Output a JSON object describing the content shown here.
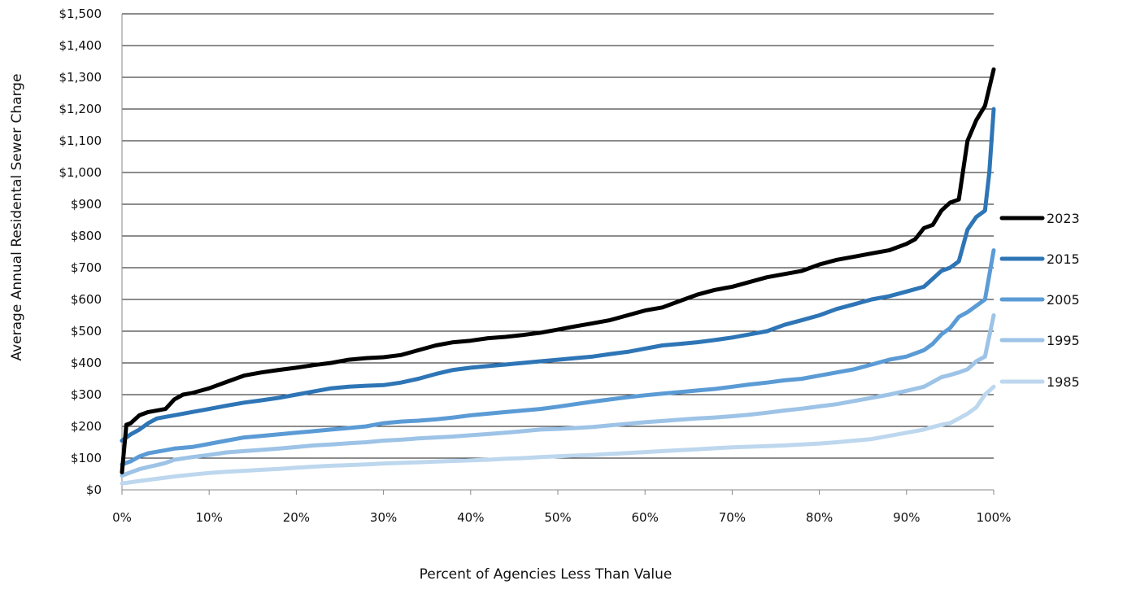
{
  "chart_data": {
    "type": "line",
    "title": "",
    "xlabel": "Percent of Agencies Less Than Value",
    "ylabel": "Average Annual Residental Sewer Charge",
    "xlim": [
      0,
      100
    ],
    "ylim": [
      0,
      1500
    ],
    "x_ticks": [
      0,
      10,
      20,
      30,
      40,
      50,
      60,
      70,
      80,
      90,
      100
    ],
    "x_tick_labels": [
      "0%",
      "10%",
      "20%",
      "30%",
      "40%",
      "50%",
      "60%",
      "70%",
      "80%",
      "90%",
      "100%"
    ],
    "y_ticks": [
      0,
      100,
      200,
      300,
      400,
      500,
      600,
      700,
      800,
      900,
      1000,
      1100,
      1200,
      1300,
      1400,
      1500
    ],
    "y_tick_labels": [
      "$0",
      "$100",
      "$200",
      "$300",
      "$400",
      "$500",
      "$600",
      "$700",
      "$800",
      "$900",
      "$1,000",
      "$1,100",
      "$1,200",
      "$1,300",
      "$1,400",
      "$1,500"
    ],
    "grid": "horizontal",
    "legend_position": "right",
    "series": [
      {
        "name": "2023",
        "color": "#000000",
        "x": [
          0,
          0.5,
          1,
          2,
          3,
          5,
          6,
          7,
          8,
          10,
          12,
          14,
          16,
          18,
          20,
          22,
          24,
          26,
          28,
          30,
          32,
          34,
          36,
          38,
          40,
          42,
          44,
          46,
          48,
          50,
          52,
          54,
          56,
          58,
          60,
          62,
          64,
          66,
          68,
          70,
          72,
          74,
          76,
          78,
          80,
          82,
          84,
          86,
          88,
          90,
          91,
          92,
          93,
          94,
          95,
          96,
          97,
          98,
          99,
          100
        ],
        "y": [
          55,
          205,
          210,
          235,
          245,
          255,
          285,
          300,
          305,
          320,
          340,
          360,
          370,
          378,
          385,
          393,
          400,
          410,
          415,
          418,
          425,
          440,
          455,
          465,
          470,
          478,
          482,
          488,
          495,
          505,
          515,
          525,
          535,
          550,
          565,
          575,
          595,
          615,
          630,
          640,
          655,
          670,
          680,
          690,
          710,
          725,
          735,
          745,
          755,
          775,
          790,
          825,
          835,
          880,
          905,
          915,
          1100,
          1165,
          1210,
          1325
        ]
      },
      {
        "name": "2015",
        "color": "#2e75b6",
        "x": [
          0,
          1,
          2,
          3,
          4,
          5,
          6,
          8,
          10,
          12,
          14,
          16,
          18,
          20,
          22,
          24,
          26,
          28,
          30,
          32,
          34,
          36,
          38,
          40,
          42,
          44,
          46,
          48,
          50,
          52,
          54,
          56,
          58,
          60,
          62,
          64,
          66,
          68,
          70,
          72,
          74,
          76,
          78,
          80,
          82,
          84,
          86,
          88,
          90,
          92,
          93,
          94,
          95,
          96,
          97,
          98,
          99,
          99.5,
          100
        ],
        "y": [
          155,
          175,
          190,
          210,
          225,
          230,
          235,
          245,
          255,
          265,
          275,
          282,
          290,
          300,
          310,
          320,
          325,
          328,
          330,
          338,
          350,
          365,
          378,
          385,
          390,
          395,
          400,
          405,
          410,
          415,
          420,
          428,
          435,
          445,
          455,
          460,
          465,
          472,
          480,
          490,
          500,
          520,
          535,
          550,
          570,
          585,
          600,
          610,
          625,
          640,
          665,
          690,
          700,
          720,
          820,
          860,
          880,
          1000,
          1200
        ]
      },
      {
        "name": "2005",
        "color": "#5b9bd5",
        "x": [
          0,
          1,
          2,
          3,
          4,
          5,
          6,
          8,
          10,
          12,
          14,
          16,
          18,
          20,
          22,
          24,
          26,
          28,
          30,
          32,
          34,
          36,
          38,
          40,
          42,
          44,
          46,
          48,
          50,
          52,
          54,
          56,
          58,
          60,
          62,
          64,
          66,
          68,
          70,
          72,
          74,
          76,
          78,
          80,
          82,
          84,
          86,
          88,
          90,
          92,
          93,
          94,
          95,
          96,
          97,
          98,
          99,
          100
        ],
        "y": [
          80,
          90,
          105,
          115,
          120,
          125,
          130,
          135,
          145,
          155,
          165,
          170,
          175,
          180,
          185,
          190,
          195,
          200,
          210,
          215,
          218,
          222,
          228,
          235,
          240,
          245,
          250,
          255,
          262,
          270,
          278,
          285,
          292,
          298,
          303,
          308,
          313,
          318,
          325,
          332,
          338,
          345,
          350,
          360,
          370,
          380,
          395,
          410,
          420,
          440,
          460,
          490,
          510,
          545,
          560,
          580,
          600,
          755
        ]
      },
      {
        "name": "1995",
        "color": "#9dc3e6",
        "x": [
          0,
          1,
          2,
          3,
          4,
          5,
          6,
          8,
          10,
          12,
          14,
          16,
          18,
          20,
          22,
          24,
          26,
          28,
          30,
          32,
          34,
          36,
          38,
          40,
          42,
          44,
          46,
          48,
          50,
          52,
          54,
          56,
          58,
          60,
          62,
          64,
          66,
          68,
          70,
          72,
          74,
          76,
          78,
          80,
          82,
          84,
          86,
          88,
          90,
          92,
          93,
          94,
          95,
          96,
          97,
          98,
          99,
          100
        ],
        "y": [
          45,
          55,
          65,
          72,
          78,
          85,
          95,
          103,
          110,
          118,
          122,
          126,
          130,
          135,
          140,
          143,
          147,
          150,
          155,
          158,
          162,
          165,
          168,
          172,
          176,
          180,
          185,
          190,
          192,
          195,
          198,
          203,
          208,
          213,
          217,
          221,
          225,
          228,
          232,
          237,
          243,
          250,
          256,
          263,
          270,
          280,
          290,
          300,
          312,
          325,
          340,
          355,
          362,
          370,
          380,
          405,
          420,
          550
        ]
      },
      {
        "name": "1985",
        "color": "#bdd7ee",
        "x": [
          0,
          2,
          4,
          6,
          8,
          10,
          12,
          14,
          16,
          18,
          20,
          22,
          24,
          26,
          28,
          30,
          32,
          34,
          36,
          38,
          40,
          42,
          44,
          46,
          48,
          50,
          52,
          54,
          56,
          58,
          60,
          62,
          64,
          66,
          68,
          70,
          72,
          74,
          76,
          78,
          80,
          82,
          84,
          86,
          88,
          90,
          92,
          93,
          94,
          95,
          96,
          97,
          98,
          99,
          100
        ],
        "y": [
          20,
          28,
          35,
          42,
          48,
          53,
          57,
          60,
          63,
          66,
          70,
          73,
          76,
          78,
          80,
          83,
          85,
          87,
          89,
          91,
          93,
          95,
          98,
          100,
          103,
          106,
          108,
          110,
          113,
          116,
          119,
          122,
          125,
          128,
          131,
          134,
          136,
          138,
          140,
          143,
          146,
          150,
          155,
          160,
          170,
          180,
          190,
          198,
          205,
          210,
          225,
          240,
          260,
          300,
          325
        ]
      }
    ]
  }
}
